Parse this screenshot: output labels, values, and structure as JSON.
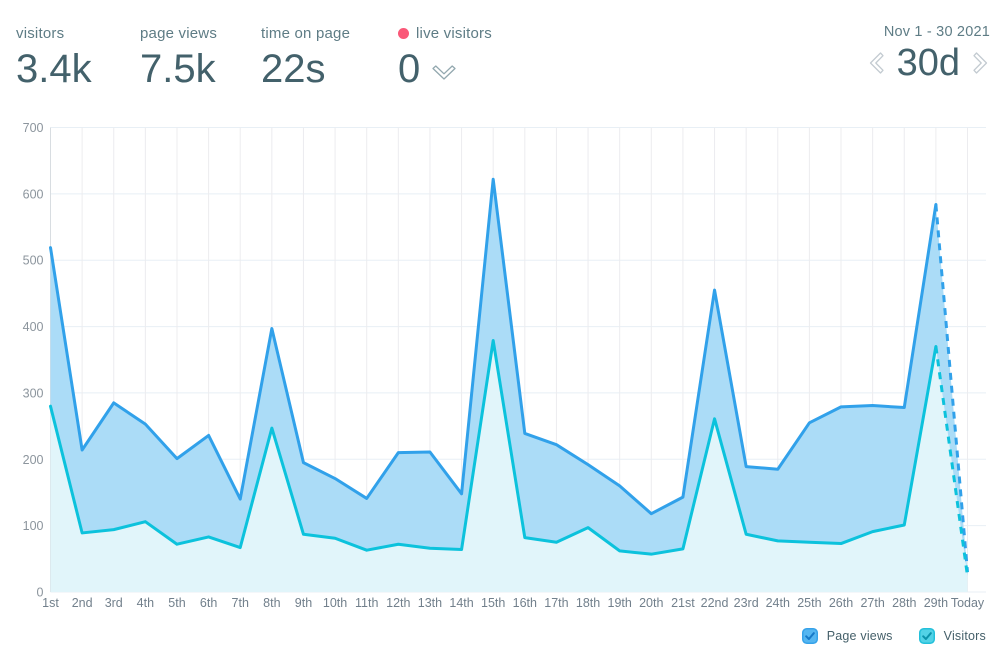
{
  "header": {
    "stats": [
      {
        "label": "visitors",
        "value": "3.4k"
      },
      {
        "label": "page views",
        "value": "7.5k"
      },
      {
        "label": "time on page",
        "value": "22s"
      },
      {
        "label": "live visitors",
        "value": "0"
      }
    ],
    "date_range": "Nov 1 - 30 2021",
    "period": "30d"
  },
  "colors": {
    "stat_label": "#5e7c85",
    "stat_value": "#43616b",
    "live_dot": "#fa5878",
    "page_views_line": "#31a1ea",
    "page_views_fill": "#abdcf7",
    "visitors_line": "#0cc2dc",
    "visitors_fill": "#e1f5fa",
    "grid_horizontal": "#e8eff5",
    "grid_vertical": "#ececef",
    "axis_line": "#d8dde1",
    "y_tick_label": "#8c959d",
    "x_tick_label": "#72808c",
    "chevron_outline": "#c3cbd1"
  },
  "chart_data": {
    "type": "area",
    "title": "",
    "xlabel": "",
    "ylabel": "",
    "categories": [
      "1st",
      "2nd",
      "3rd",
      "4th",
      "5th",
      "6th",
      "7th",
      "8th",
      "9th",
      "10th",
      "11th",
      "12th",
      "13th",
      "14th",
      "15th",
      "16th",
      "17th",
      "18th",
      "19th",
      "20th",
      "21st",
      "22nd",
      "23rd",
      "24th",
      "25th",
      "26th",
      "27th",
      "28th",
      "29th",
      "Today"
    ],
    "series": [
      {
        "name": "Page views",
        "line_color": "#31a1ea",
        "fill_color": "#abdcf7",
        "values": [
          519,
          214,
          285,
          253,
          201,
          236,
          140,
          397,
          195,
          171,
          141,
          210,
          211,
          148,
          622,
          239,
          222,
          192,
          160,
          118,
          143,
          455,
          189,
          185,
          255,
          279,
          281,
          278,
          584,
          30
        ]
      },
      {
        "name": "Visitors",
        "line_color": "#0cc2dc",
        "fill_color": "#e1f5fa",
        "values": [
          280,
          89,
          94,
          106,
          72,
          83,
          67,
          247,
          87,
          81,
          63,
          72,
          66,
          64,
          379,
          82,
          75,
          97,
          62,
          57,
          65,
          261,
          87,
          77,
          75,
          73,
          91,
          101,
          370,
          24
        ]
      }
    ],
    "ylim": [
      0,
      700
    ],
    "y_ticks": [
      0,
      100,
      200,
      300,
      400,
      500,
      600,
      700
    ],
    "grid": true,
    "last_segment_dashed": true,
    "legend_position": "bottom-right"
  },
  "legend": {
    "items": [
      {
        "box_fill": "#55b6f1",
        "box_border": "#36a2e9",
        "check": "#1679c8"
      },
      {
        "box_fill": "#52d2e6",
        "box_border": "#23c0da",
        "check": "#0b93ab"
      }
    ]
  }
}
